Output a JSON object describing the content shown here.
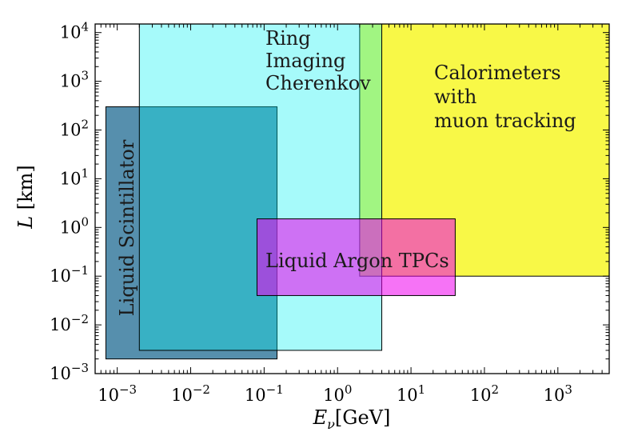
{
  "chart_data": {
    "type": "area",
    "x_scale": "log",
    "y_scale": "log",
    "xlim": [
      0.0005,
      5000
    ],
    "ylim": [
      0.001,
      15000
    ],
    "xlabel": {
      "base": "E",
      "sub": "ν",
      "rest": "[GeV]"
    },
    "ylabel": {
      "main": "L",
      "rest": "[km]"
    },
    "x_ticks": [
      {
        "value": 0.001,
        "base": "10",
        "exp": "−3"
      },
      {
        "value": 0.01,
        "base": "10",
        "exp": "−2"
      },
      {
        "value": 0.1,
        "base": "10",
        "exp": "−1"
      },
      {
        "value": 1,
        "base": "10",
        "exp": "0"
      },
      {
        "value": 10,
        "base": "10",
        "exp": "1"
      },
      {
        "value": 100,
        "base": "10",
        "exp": "2"
      },
      {
        "value": 1000,
        "base": "10",
        "exp": "3"
      }
    ],
    "y_ticks": [
      {
        "value": 0.001,
        "base": "10",
        "exp": "−3"
      },
      {
        "value": 0.01,
        "base": "10",
        "exp": "−2"
      },
      {
        "value": 0.1,
        "base": "10",
        "exp": "−1"
      },
      {
        "value": 1,
        "base": "10",
        "exp": "0"
      },
      {
        "value": 10,
        "base": "10",
        "exp": "1"
      },
      {
        "value": 100,
        "base": "10",
        "exp": "2"
      },
      {
        "value": 1000,
        "base": "10",
        "exp": "3"
      },
      {
        "value": 10000,
        "base": "10",
        "exp": "4"
      }
    ],
    "regions": [
      {
        "id": "calorimeters",
        "label_lines": [
          "Calorimeters",
          "with",
          "muon tracking"
        ],
        "x": [
          2,
          5000
        ],
        "y": [
          0.1,
          15000
        ],
        "color": "#f5f500",
        "opacity": 0.72,
        "border": true,
        "label_orientation": "horizontal"
      },
      {
        "id": "liquid-scintillator",
        "label_lines": [
          "Liquid Scintillator"
        ],
        "x": [
          0.0007,
          0.15
        ],
        "y": [
          0.002,
          300
        ],
        "color": "#1d6a91",
        "opacity": 0.75,
        "border": true,
        "label_orientation": "vertical"
      },
      {
        "id": "ring-imaging-cherenkov",
        "label_lines": [
          "Ring",
          "Imaging",
          "Cherenkov"
        ],
        "x": [
          0.002,
          4
        ],
        "y": [
          0.003,
          15000
        ],
        "color": "#00f0f0",
        "opacity": 0.35,
        "border": true,
        "label_orientation": "horizontal"
      },
      {
        "id": "liquid-argon-tpcs",
        "label_lines": [
          "Liquid Argon TPCs"
        ],
        "x": [
          0.08,
          40
        ],
        "y": [
          0.04,
          1.5
        ],
        "color": "#ee00ee",
        "opacity": 0.55,
        "border": true,
        "label_orientation": "horizontal"
      }
    ]
  }
}
